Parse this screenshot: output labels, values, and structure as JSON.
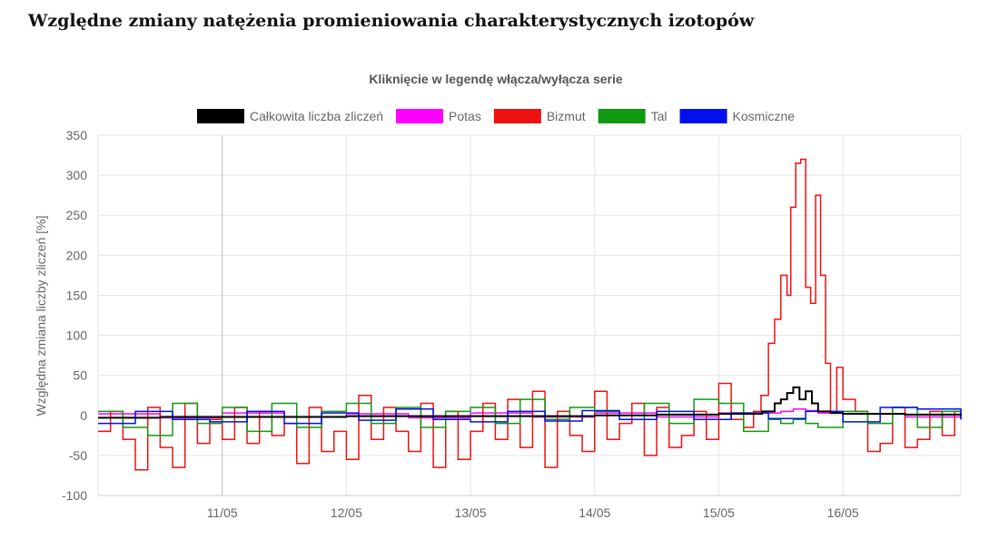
{
  "page": {
    "title": "Względne zmiany natężenia promieniowania charakterystycznych izotopów"
  },
  "chart_data": {
    "type": "line",
    "subtitle": "Kliknięcie w legendę włącza/wyłącza serie",
    "ylabel": "Względna zmiana liczby zliczeń [%]",
    "xlabel": "",
    "ylim": [
      -100,
      350
    ],
    "yticks": [
      350,
      300,
      250,
      200,
      150,
      100,
      50,
      0,
      -50,
      -100
    ],
    "x_tick_labels": [
      "11/05",
      "12/05",
      "13/05",
      "14/05",
      "15/05",
      "16/05"
    ],
    "x_range_days": [
      10.0,
      16.95
    ],
    "grid": true,
    "legend_position": "top",
    "step": "stepped",
    "series": [
      {
        "name": "Całkowita liczba zliczeń",
        "color": "#000000",
        "x": [
          10.0,
          10.5,
          11.0,
          11.5,
          12.0,
          12.5,
          13.0,
          13.5,
          14.0,
          14.5,
          15.0,
          15.2,
          15.35,
          15.45,
          15.5,
          15.55,
          15.6,
          15.65,
          15.7,
          15.75,
          15.8,
          15.9,
          16.0,
          16.5,
          16.95
        ],
        "values": [
          -3,
          -2,
          -2,
          -2,
          -1,
          -1,
          -1,
          -1,
          0,
          1,
          2,
          2,
          5,
          15,
          20,
          28,
          35,
          20,
          30,
          15,
          5,
          3,
          2,
          1,
          0
        ]
      },
      {
        "name": "Potas",
        "color": "#ff00ff",
        "x": [
          10.0,
          10.5,
          11.0,
          11.5,
          12.0,
          12.5,
          13.0,
          13.5,
          14.0,
          14.5,
          15.0,
          15.5,
          15.6,
          15.7,
          15.8,
          16.0,
          16.5,
          16.95
        ],
        "values": [
          2,
          -3,
          3,
          -2,
          2,
          -3,
          3,
          -2,
          3,
          -2,
          3,
          5,
          8,
          6,
          3,
          2,
          -2,
          3
        ]
      },
      {
        "name": "Bizmut",
        "color": "#ee1111",
        "x": [
          10.0,
          10.1,
          10.2,
          10.3,
          10.4,
          10.5,
          10.6,
          10.7,
          10.8,
          10.9,
          11.0,
          11.1,
          11.2,
          11.3,
          11.4,
          11.5,
          11.6,
          11.7,
          11.8,
          11.9,
          12.0,
          12.1,
          12.2,
          12.3,
          12.4,
          12.5,
          12.6,
          12.7,
          12.8,
          12.9,
          13.0,
          13.1,
          13.2,
          13.3,
          13.4,
          13.5,
          13.6,
          13.7,
          13.8,
          13.9,
          14.0,
          14.1,
          14.2,
          14.3,
          14.4,
          14.5,
          14.6,
          14.7,
          14.8,
          14.9,
          15.0,
          15.1,
          15.2,
          15.28,
          15.34,
          15.4,
          15.45,
          15.5,
          15.55,
          15.58,
          15.62,
          15.66,
          15.7,
          15.74,
          15.78,
          15.82,
          15.86,
          15.9,
          15.95,
          16.0,
          16.1,
          16.2,
          16.3,
          16.4,
          16.5,
          16.6,
          16.7,
          16.8,
          16.9
        ],
        "values": [
          -20,
          5,
          -30,
          -68,
          10,
          -40,
          -65,
          15,
          -35,
          -5,
          -30,
          10,
          -35,
          5,
          -25,
          -10,
          -60,
          10,
          -45,
          -20,
          -55,
          25,
          -30,
          10,
          -20,
          -45,
          15,
          -65,
          5,
          -55,
          -20,
          15,
          -30,
          20,
          -40,
          30,
          -65,
          5,
          -25,
          -45,
          30,
          -30,
          -10,
          15,
          -50,
          10,
          -40,
          -25,
          5,
          -30,
          40,
          -5,
          -15,
          5,
          25,
          90,
          120,
          175,
          150,
          260,
          315,
          320,
          160,
          140,
          275,
          175,
          65,
          5,
          60,
          20,
          5,
          -45,
          -35,
          10,
          -40,
          -30,
          5,
          -25,
          5
        ]
      },
      {
        "name": "Tal",
        "color": "#119911",
        "x": [
          10.0,
          10.2,
          10.4,
          10.6,
          10.8,
          11.0,
          11.2,
          11.4,
          11.6,
          11.8,
          12.0,
          12.2,
          12.4,
          12.6,
          12.8,
          13.0,
          13.2,
          13.4,
          13.6,
          13.8,
          14.0,
          14.2,
          14.4,
          14.6,
          14.8,
          15.0,
          15.2,
          15.4,
          15.5,
          15.6,
          15.7,
          15.8,
          16.0,
          16.2,
          16.4,
          16.6,
          16.8,
          16.95
        ],
        "values": [
          5,
          -15,
          -25,
          15,
          -10,
          10,
          -20,
          15,
          -15,
          5,
          15,
          -10,
          10,
          -15,
          5,
          10,
          -10,
          20,
          -5,
          10,
          5,
          -5,
          15,
          -10,
          20,
          15,
          -20,
          -5,
          -10,
          -5,
          -10,
          -15,
          5,
          -10,
          10,
          -15,
          5,
          -5
        ]
      },
      {
        "name": "Kosmiczne",
        "color": "#0011ee",
        "x": [
          10.0,
          10.3,
          10.6,
          10.9,
          11.2,
          11.5,
          11.8,
          12.1,
          12.4,
          12.7,
          13.0,
          13.3,
          13.6,
          13.9,
          14.2,
          14.5,
          14.8,
          15.1,
          15.4,
          15.7,
          16.0,
          16.3,
          16.6,
          16.95
        ],
        "values": [
          -10,
          5,
          -5,
          -8,
          5,
          -10,
          3,
          -6,
          8,
          -5,
          -8,
          5,
          -7,
          6,
          -5,
          5,
          -5,
          3,
          -4,
          5,
          -8,
          10,
          8,
          -5
        ]
      }
    ]
  }
}
